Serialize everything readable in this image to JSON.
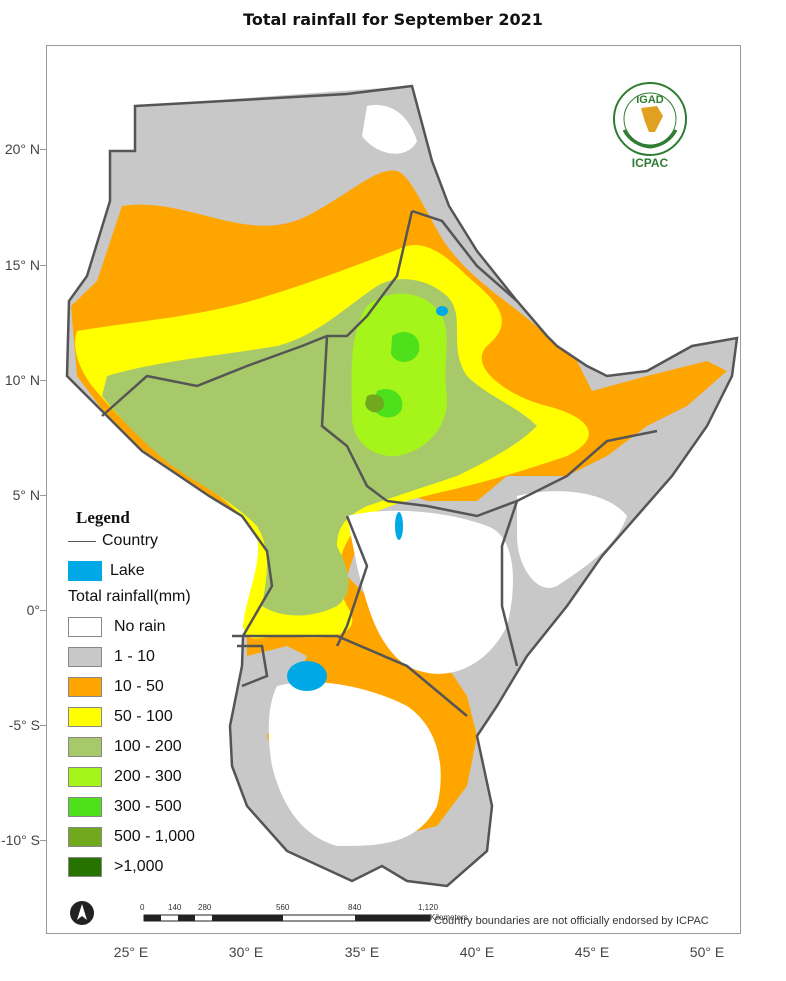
{
  "title": "Total rainfall for  September  2021",
  "axes": {
    "latitudes": [
      "20° N",
      "15° N",
      "10° N",
      "5° N",
      "0°",
      "-5° S",
      "-10° S"
    ],
    "longitudes": [
      "25° E",
      "30° E",
      "35° E",
      "40° E",
      "45° E",
      "50° E"
    ]
  },
  "legend": {
    "title": "Legend",
    "country_label": "Country",
    "lake_label": "Lake",
    "rainfall_title": "Total rainfall(mm)",
    "classes": [
      {
        "label": "No rain",
        "color": "#ffffff"
      },
      {
        "label": "1 - 10",
        "color": "#c8c8c8"
      },
      {
        "label": "10 - 50",
        "color": "#ffa500"
      },
      {
        "label": "50 - 100",
        "color": "#ffff00"
      },
      {
        "label": "100 - 200",
        "color": "#a8c96a"
      },
      {
        "label": "200 - 300",
        "color": "#a6f51a"
      },
      {
        "label": "300 - 500",
        "color": "#4ee01a"
      },
      {
        "label": "500 - 1,000",
        "color": "#70a81e"
      },
      {
        "label": ">1,000",
        "color": "#267300"
      }
    ],
    "lake_color": "#00a9e6",
    "country_line_color": "#555555"
  },
  "logo": {
    "text_top": "IGAD",
    "text_bottom": "ICPAC"
  },
  "scale": {
    "ticks": [
      "0",
      "140",
      "280",
      "560",
      "840",
      "1,120"
    ],
    "unit": "Kilometers"
  },
  "credit": "Country boundaries are not officially endorsed by ICPAC"
}
